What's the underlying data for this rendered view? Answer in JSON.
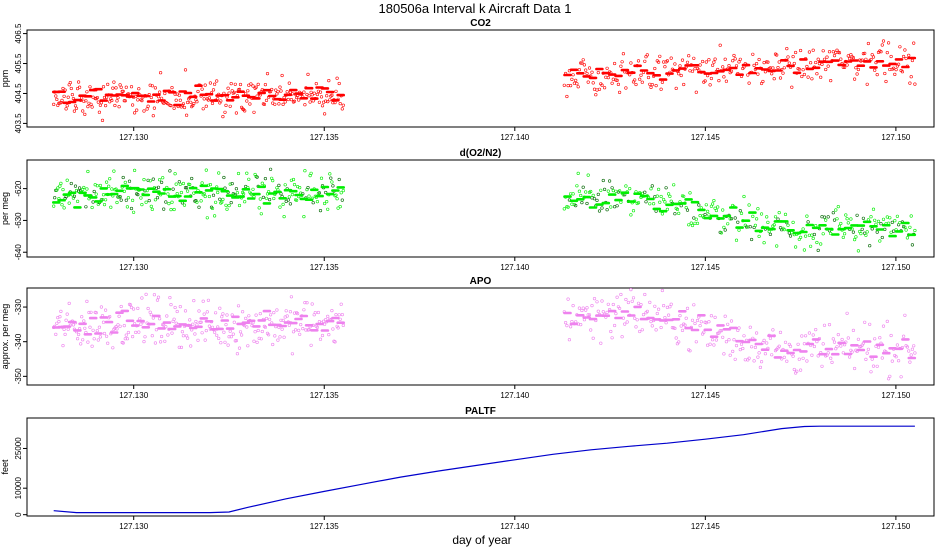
{
  "figure": {
    "title": "180506a   Interval k Aircraft Data 1",
    "xlabel": "day of year"
  },
  "chart_data": [
    {
      "type": "scatter",
      "title": "CO2",
      "ylabel": "ppm",
      "xlim": [
        127.1272,
        127.151
      ],
      "ylim": [
        403.38,
        406.62
      ],
      "xticks": [
        127.13,
        127.135,
        127.14,
        127.145,
        127.15
      ],
      "xtick_labels": [
        "127.130",
        "127.135",
        "127.140",
        "127.145",
        "127.150"
      ],
      "yticks": [
        403.5,
        404.5,
        405.5,
        406.5
      ],
      "ytick_labels": [
        "403.5",
        "404.5",
        "405.5",
        "406.5"
      ],
      "color": "#ff0000",
      "segments": [
        {
          "x_start": 127.1279,
          "x_end": 127.1355,
          "mean": [
            [
              0,
              404.45
            ],
            [
              0.5,
              404.35
            ],
            [
              1,
              404.5
            ]
          ],
          "spread": 0.3
        },
        {
          "x_start": 127.1413,
          "x_end": 127.1505,
          "mean": [
            [
              0,
              405.1
            ],
            [
              0.5,
              405.35
            ],
            [
              1,
              405.55
            ]
          ],
          "spread": 0.3
        }
      ]
    },
    {
      "type": "scatter",
      "title": "d(O2/N2)",
      "ylabel": "per meg",
      "xlim": [
        127.1272,
        127.151
      ],
      "ylim": [
        -641.5,
        -611.0
      ],
      "xticks": [
        127.13,
        127.135,
        127.14,
        127.145,
        127.15
      ],
      "xtick_labels": [
        "127.130",
        "127.135",
        "127.140",
        "127.145",
        "127.150"
      ],
      "yticks": [
        -640,
        -630,
        -620
      ],
      "ytick_labels": [
        "-640",
        "-630",
        "-620"
      ],
      "color": "#00ee00",
      "color2": "#006600",
      "segments": [
        {
          "x_start": 127.1279,
          "x_end": 127.1355,
          "mean": [
            [
              0,
              -622.5
            ],
            [
              0.3,
              -620.5
            ],
            [
              0.6,
              -621.5
            ],
            [
              1,
              -621.0
            ]
          ],
          "spread": 3.0
        },
        {
          "x_start": 127.1413,
          "x_end": 127.1505,
          "mean": [
            [
              0,
              -624.0
            ],
            [
              0.2,
              -622.5
            ],
            [
              0.45,
              -628.5
            ],
            [
              0.65,
              -633.0
            ],
            [
              0.85,
              -632.0
            ],
            [
              1,
              -633.5
            ]
          ],
          "spread": 3.0
        }
      ]
    },
    {
      "type": "scatter",
      "title": "APO",
      "ylabel": "approx. per meg",
      "xlim": [
        127.1272,
        127.151
      ],
      "ylim": [
        -352.5,
        -324.5
      ],
      "xticks": [
        127.13,
        127.135,
        127.14,
        127.145,
        127.15
      ],
      "xtick_labels": [
        "127.130",
        "127.135",
        "127.140",
        "127.145",
        "127.150"
      ],
      "yticks": [
        -350,
        -340,
        -330
      ],
      "ytick_labels": [
        "-350",
        "-340",
        "-330"
      ],
      "color": "#ee82ee",
      "segments": [
        {
          "x_start": 127.1279,
          "x_end": 127.1355,
          "mean": [
            [
              0,
              -336.0
            ],
            [
              0.3,
              -334.0
            ],
            [
              0.6,
              -335.5
            ],
            [
              1,
              -334.5
            ]
          ],
          "spread": 3.5
        },
        {
          "x_start": 127.1413,
          "x_end": 127.1505,
          "mean": [
            [
              0,
              -333.0
            ],
            [
              0.2,
              -331.0
            ],
            [
              0.45,
              -338.0
            ],
            [
              0.65,
              -343.0
            ],
            [
              0.85,
              -341.5
            ],
            [
              1,
              -342.0
            ]
          ],
          "spread": 3.5
        }
      ]
    },
    {
      "type": "line",
      "title": "PALTF",
      "ylabel": "feet",
      "xlim": [
        127.1272,
        127.151
      ],
      "ylim": [
        -500,
        36500
      ],
      "xticks": [
        127.13,
        127.135,
        127.14,
        127.145,
        127.15
      ],
      "xtick_labels": [
        "127.130",
        "127.135",
        "127.140",
        "127.145",
        "127.150"
      ],
      "yticks": [
        0,
        10000,
        25000
      ],
      "ytick_labels": [
        "0",
        "10000",
        "25000"
      ],
      "color": "#0000cc",
      "x": [
        127.1279,
        127.1285,
        127.13,
        127.132,
        127.1325,
        127.133,
        127.134,
        127.135,
        127.136,
        127.137,
        127.138,
        127.139,
        127.14,
        127.141,
        127.142,
        127.143,
        127.144,
        127.145,
        127.146,
        127.147,
        127.1476,
        127.148,
        127.149,
        127.15,
        127.1505
      ],
      "y": [
        1500,
        800,
        800,
        800,
        1000,
        2800,
        6000,
        8800,
        11500,
        14200,
        16500,
        18600,
        20700,
        22800,
        24500,
        25800,
        27000,
        28500,
        30200,
        32500,
        33300,
        33400,
        33400,
        33400,
        33400
      ]
    }
  ]
}
